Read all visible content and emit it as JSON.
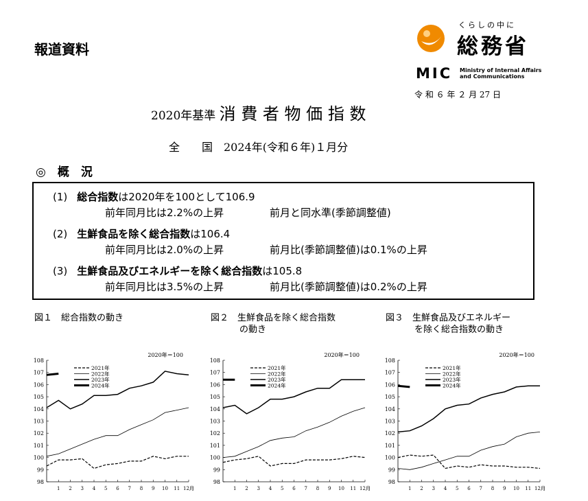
{
  "header": {
    "label": "報道資料",
    "logo_tagline": "くらしの中に",
    "logo_name": "総務省",
    "logo_abbr": "MIC",
    "logo_en": [
      "Ministry of Internal Affairs",
      "and Communications"
    ],
    "date": "令 和 ６ 年 ２ 月 27 日"
  },
  "title": {
    "prefix": "2020年基準",
    "main": "消 費 者 物 価 指 数"
  },
  "subtitle": "全　　国　2024年(令和６年)１月分",
  "section": "◎　概　況",
  "summary": [
    {
      "number": "(1)",
      "name": "総合指数",
      "text": "は2020年を100として106.9",
      "yoy": "前年同月比は2.2%の上昇",
      "mom": "前月と同水準(季節調整値)"
    },
    {
      "number": "(2)",
      "name": "生鮮食品を除く総合指数",
      "text": "は106.4",
      "yoy": "前年同月比は2.0%の上昇",
      "mom": "前月比(季節調整値)は0.1%の上昇"
    },
    {
      "number": "(3)",
      "name": "生鮮食品及びエネルギーを除く総合指数",
      "text": "は105.8",
      "yoy": "前年同月比は3.5%の上昇",
      "mom": "前月比(季節調整値)は0.2%の上昇"
    }
  ],
  "chart_data": [
    {
      "type": "line",
      "title": [
        "図１　総合指数の動き"
      ],
      "unit_label": "2020年＝100",
      "categories": [
        null,
        "1",
        "2",
        "3",
        "4",
        "5",
        "6",
        "7",
        "8",
        "9",
        "10",
        "11",
        "12月"
      ],
      "ylim": [
        98,
        108
      ],
      "yticks": [
        98,
        99,
        100,
        101,
        102,
        103,
        104,
        105,
        106,
        107,
        108
      ],
      "series": [
        {
          "name": "2021年",
          "color": "#000000",
          "line_style": "dashed",
          "line_width": 1.2,
          "values": [
            99.3,
            99.8,
            99.8,
            99.9,
            99.1,
            99.4,
            99.5,
            99.7,
            99.7,
            100.1,
            99.9,
            100.1,
            100.1
          ]
        },
        {
          "name": "2022年",
          "color": "#000000",
          "line_style": "solid",
          "line_width": 0.8,
          "values": [
            100.1,
            100.3,
            100.7,
            101.1,
            101.5,
            101.8,
            101.8,
            102.3,
            102.7,
            103.1,
            103.7,
            103.9,
            104.1
          ]
        },
        {
          "name": "2023年",
          "color": "#000000",
          "line_style": "solid",
          "line_width": 1.5,
          "values": [
            104.1,
            104.7,
            104.0,
            104.4,
            105.1,
            105.1,
            105.2,
            105.7,
            105.9,
            106.2,
            107.1,
            106.9,
            106.8
          ]
        },
        {
          "name": "2024年",
          "color": "#000000",
          "line_style": "solid",
          "line_width": 3,
          "values": [
            106.8,
            106.9,
            null,
            null,
            null,
            null,
            null,
            null,
            null,
            null,
            null,
            null,
            null
          ]
        }
      ]
    },
    {
      "type": "line",
      "title": [
        "図２　生鮮食品を除く総合指数",
        "の動き"
      ],
      "unit_label": "2020年＝100",
      "categories": [
        null,
        "1",
        "2",
        "3",
        "4",
        "5",
        "6",
        "7",
        "8",
        "9",
        "10",
        "11",
        "12月"
      ],
      "ylim": [
        98,
        108
      ],
      "yticks": [
        98,
        99,
        100,
        101,
        102,
        103,
        104,
        105,
        106,
        107,
        108
      ],
      "series": [
        {
          "name": "2021年",
          "color": "#000000",
          "line_style": "dashed",
          "line_width": 1.2,
          "values": [
            99.6,
            99.8,
            99.9,
            100.1,
            99.3,
            99.5,
            99.5,
            99.8,
            99.8,
            99.8,
            99.9,
            100.1,
            100.0
          ]
        },
        {
          "name": "2022年",
          "color": "#000000",
          "line_style": "solid",
          "line_width": 0.8,
          "values": [
            100.0,
            100.1,
            100.5,
            100.9,
            101.4,
            101.6,
            101.7,
            102.2,
            102.5,
            102.9,
            103.4,
            103.8,
            104.1
          ]
        },
        {
          "name": "2023年",
          "color": "#000000",
          "line_style": "solid",
          "line_width": 1.5,
          "values": [
            104.1,
            104.3,
            103.6,
            104.1,
            104.8,
            104.8,
            105.0,
            105.4,
            105.7,
            105.7,
            106.4,
            106.4,
            106.4
          ]
        },
        {
          "name": "2024年",
          "color": "#000000",
          "line_style": "solid",
          "line_width": 3,
          "values": [
            106.4,
            106.4,
            null,
            null,
            null,
            null,
            null,
            null,
            null,
            null,
            null,
            null,
            null
          ]
        }
      ]
    },
    {
      "type": "line",
      "title": [
        "図３　生鮮食品及びエネルギー",
        "を除く総合指数の動き"
      ],
      "unit_label": "2020年＝100",
      "categories": [
        null,
        "1",
        "2",
        "3",
        "4",
        "5",
        "6",
        "7",
        "8",
        "9",
        "10",
        "11",
        "12月"
      ],
      "ylim": [
        98,
        108
      ],
      "yticks": [
        98,
        99,
        100,
        101,
        102,
        103,
        104,
        105,
        106,
        107,
        108
      ],
      "series": [
        {
          "name": "2021年",
          "color": "#000000",
          "line_style": "dashed",
          "line_width": 1.2,
          "values": [
            100.0,
            100.2,
            100.1,
            100.2,
            99.1,
            99.3,
            99.2,
            99.4,
            99.3,
            99.3,
            99.2,
            99.2,
            99.1
          ]
        },
        {
          "name": "2022年",
          "color": "#000000",
          "line_style": "solid",
          "line_width": 0.8,
          "values": [
            99.1,
            99.0,
            99.2,
            99.5,
            99.8,
            100.1,
            100.1,
            100.6,
            100.9,
            101.1,
            101.7,
            102.0,
            102.1
          ]
        },
        {
          "name": "2023年",
          "color": "#000000",
          "line_style": "solid",
          "line_width": 1.5,
          "values": [
            102.1,
            102.2,
            102.6,
            103.2,
            104.0,
            104.3,
            104.4,
            104.9,
            105.2,
            105.4,
            105.8,
            105.9,
            105.9
          ]
        },
        {
          "name": "2024年",
          "color": "#000000",
          "line_style": "solid",
          "line_width": 3,
          "values": [
            105.9,
            105.8,
            null,
            null,
            null,
            null,
            null,
            null,
            null,
            null,
            null,
            null,
            null
          ]
        }
      ]
    }
  ]
}
